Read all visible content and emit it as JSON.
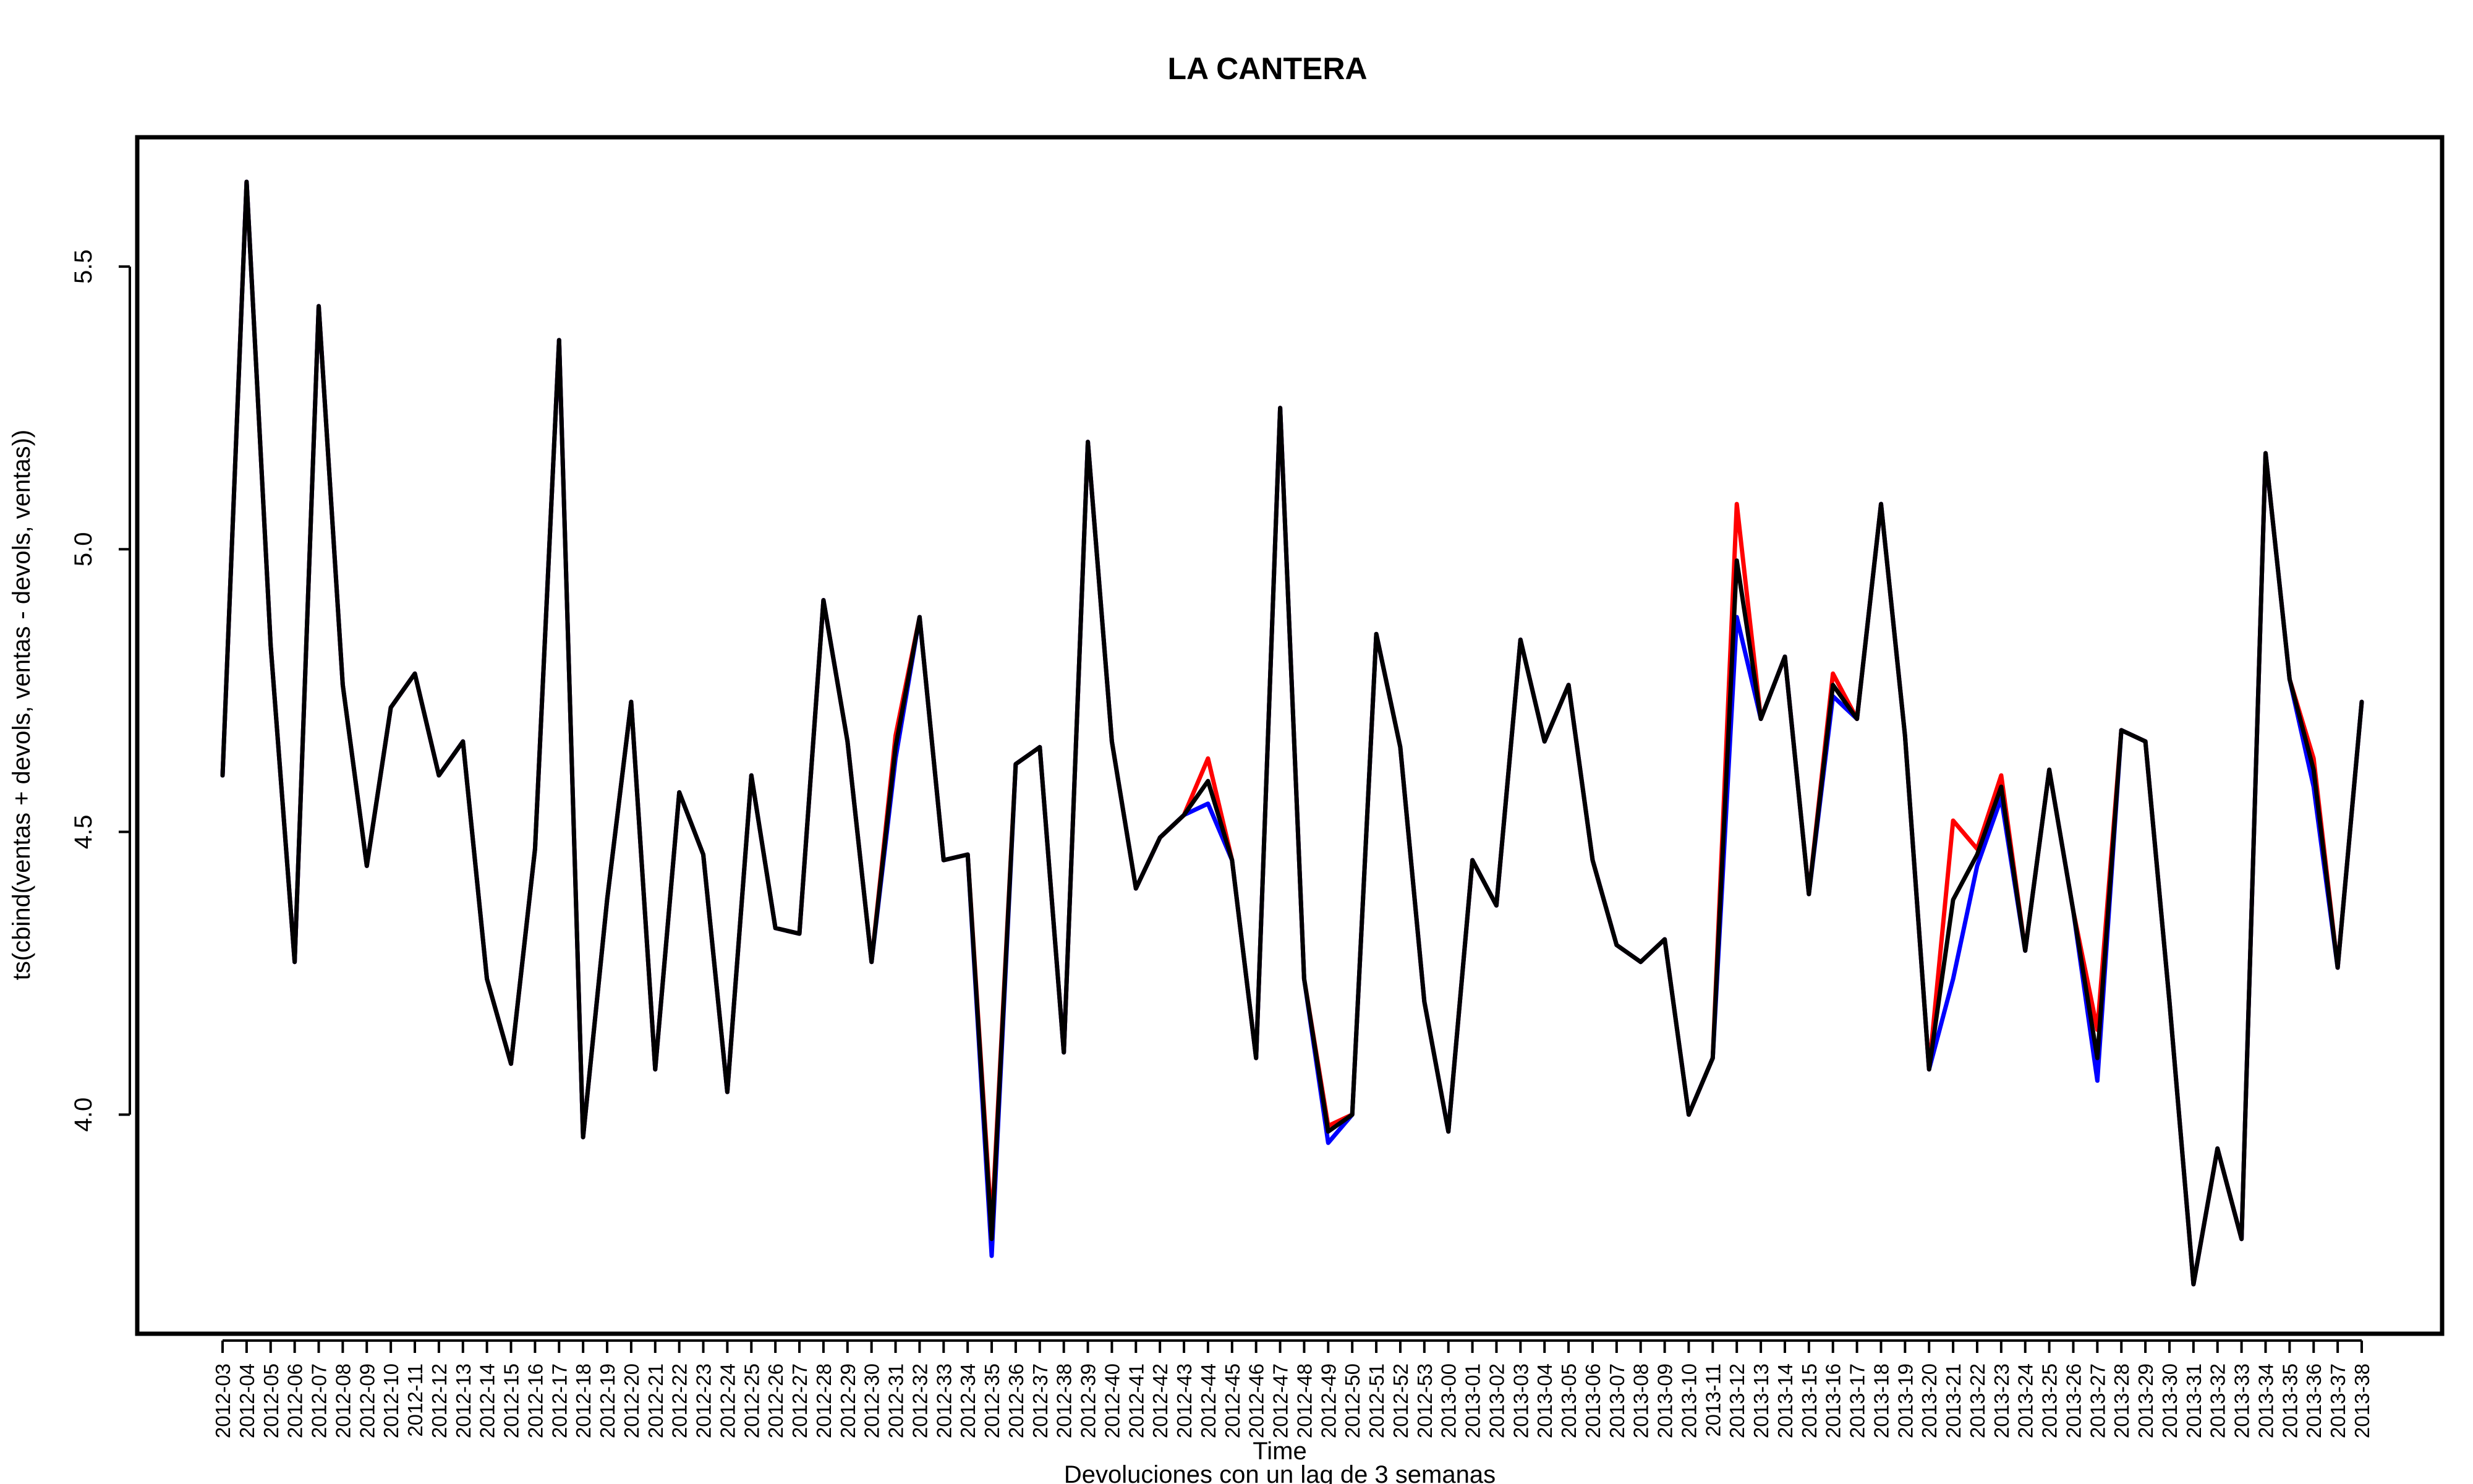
{
  "chart_data": {
    "type": "line",
    "title": "LA CANTERA",
    "xlabel": "Time",
    "subtitle": "Devoluciones con un lag de 3 semanas",
    "ylabel": "ts(cbind(ventas + devols, ventas - devols, ventas))",
    "ylim": [
      3.62,
      5.72
    ],
    "yticks": [
      4.0,
      4.5,
      5.0,
      5.5
    ],
    "ytick_labels": [
      "4.0",
      "4.5",
      "5.0",
      "5.5"
    ],
    "grid": false,
    "legend": "none",
    "categories": [
      "2012-03",
      "2012-04",
      "2012-05",
      "2012-06",
      "2012-07",
      "2012-08",
      "2012-09",
      "2012-10",
      "2012-11",
      "2012-12",
      "2012-13",
      "2012-14",
      "2012-15",
      "2012-16",
      "2012-17",
      "2012-18",
      "2012-19",
      "2012-20",
      "2012-21",
      "2012-22",
      "2012-23",
      "2012-24",
      "2012-25",
      "2012-26",
      "2012-27",
      "2012-28",
      "2012-29",
      "2012-30",
      "2012-31",
      "2012-32",
      "2012-33",
      "2012-34",
      "2012-35",
      "2012-36",
      "2012-37",
      "2012-38",
      "2012-39",
      "2012-40",
      "2012-41",
      "2012-42",
      "2012-43",
      "2012-44",
      "2012-45",
      "2012-46",
      "2012-47",
      "2012-48",
      "2012-49",
      "2012-50",
      "2012-51",
      "2012-52",
      "2012-53",
      "2013-00",
      "2013-01",
      "2013-02",
      "2013-03",
      "2013-04",
      "2013-05",
      "2013-06",
      "2013-07",
      "2013-08",
      "2013-09",
      "2013-10",
      "2013-11",
      "2013-12",
      "2013-13",
      "2013-14",
      "2013-15",
      "2013-16",
      "2013-17",
      "2013-18",
      "2013-19",
      "2013-20",
      "2013-21",
      "2013-22",
      "2013-23",
      "2013-24",
      "2013-25",
      "2013-26",
      "2013-27",
      "2013-28",
      "2013-29",
      "2013-30",
      "2013-31",
      "2013-32",
      "2013-33",
      "2013-34",
      "2013-35",
      "2013-36",
      "2013-37",
      "2013-38"
    ],
    "series": [
      {
        "color": "#ff0000",
        "values": [
          4.6,
          5.65,
          4.83,
          4.27,
          5.43,
          4.76,
          4.44,
          4.72,
          4.78,
          4.6,
          4.66,
          4.24,
          4.09,
          4.47,
          5.37,
          3.96,
          4.38,
          4.73,
          4.08,
          4.57,
          4.46,
          4.04,
          4.6,
          4.33,
          4.32,
          4.91,
          4.66,
          4.27,
          4.67,
          4.88,
          4.45,
          4.46,
          3.8,
          4.62,
          4.65,
          4.11,
          5.19,
          4.66,
          4.4,
          4.49,
          4.53,
          4.63,
          4.45,
          4.1,
          5.25,
          4.24,
          3.98,
          4.0,
          4.85,
          4.65,
          4.2,
          3.97,
          4.45,
          4.37,
          4.84,
          4.66,
          4.76,
          4.45,
          4.3,
          4.27,
          4.31,
          4.0,
          4.1,
          5.08,
          4.7,
          4.81,
          4.39,
          4.78,
          4.7,
          5.08,
          4.67,
          4.08,
          4.52,
          4.47,
          4.6,
          4.29,
          4.61,
          4.36,
          4.15,
          4.68,
          4.66,
          4.2,
          3.7,
          3.94,
          3.78,
          5.17,
          4.77,
          4.63,
          4.26,
          4.73
        ]
      },
      {
        "color": "#0000ff",
        "values": [
          4.6,
          5.65,
          4.83,
          4.27,
          5.43,
          4.76,
          4.44,
          4.72,
          4.78,
          4.6,
          4.66,
          4.24,
          4.09,
          4.47,
          5.37,
          3.96,
          4.38,
          4.73,
          4.08,
          4.57,
          4.46,
          4.04,
          4.6,
          4.33,
          4.32,
          4.91,
          4.66,
          4.27,
          4.63,
          4.88,
          4.45,
          4.46,
          3.75,
          4.62,
          4.65,
          4.11,
          5.19,
          4.66,
          4.4,
          4.49,
          4.53,
          4.55,
          4.45,
          4.1,
          5.25,
          4.24,
          3.95,
          4.0,
          4.85,
          4.65,
          4.2,
          3.97,
          4.45,
          4.37,
          4.84,
          4.66,
          4.76,
          4.45,
          4.3,
          4.27,
          4.31,
          4.0,
          4.1,
          4.88,
          4.7,
          4.81,
          4.39,
          4.74,
          4.7,
          5.08,
          4.67,
          4.08,
          4.24,
          4.44,
          4.56,
          4.29,
          4.61,
          4.36,
          4.06,
          4.68,
          4.66,
          4.2,
          3.7,
          3.94,
          3.78,
          5.17,
          4.77,
          4.58,
          4.26,
          4.73
        ]
      },
      {
        "color": "#000000",
        "values": [
          4.6,
          5.65,
          4.83,
          4.27,
          5.43,
          4.76,
          4.44,
          4.72,
          4.78,
          4.6,
          4.66,
          4.24,
          4.09,
          4.47,
          5.37,
          3.96,
          4.38,
          4.73,
          4.08,
          4.57,
          4.46,
          4.04,
          4.6,
          4.33,
          4.32,
          4.91,
          4.66,
          4.27,
          4.65,
          4.88,
          4.45,
          4.46,
          3.78,
          4.62,
          4.65,
          4.11,
          5.19,
          4.66,
          4.4,
          4.49,
          4.53,
          4.59,
          4.45,
          4.1,
          5.25,
          4.24,
          3.97,
          4.0,
          4.85,
          4.65,
          4.2,
          3.97,
          4.45,
          4.37,
          4.84,
          4.66,
          4.76,
          4.45,
          4.3,
          4.27,
          4.31,
          4.0,
          4.1,
          4.98,
          4.7,
          4.81,
          4.39,
          4.76,
          4.7,
          5.08,
          4.67,
          4.08,
          4.38,
          4.46,
          4.58,
          4.29,
          4.61,
          4.36,
          4.1,
          4.68,
          4.66,
          4.2,
          3.7,
          3.94,
          3.78,
          5.17,
          4.77,
          4.61,
          4.26,
          4.73
        ]
      }
    ]
  }
}
